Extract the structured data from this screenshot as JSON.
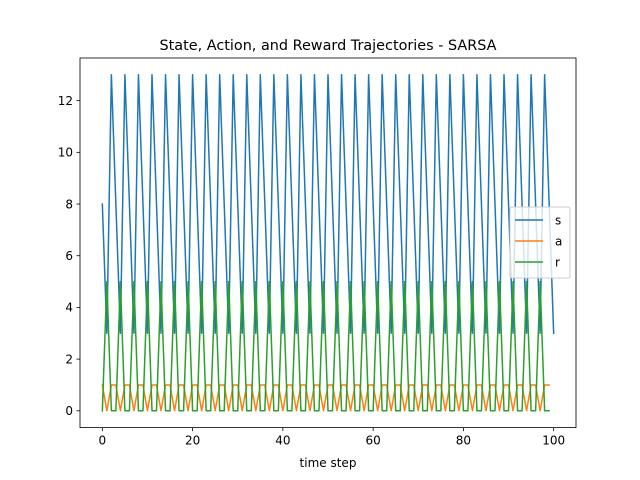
{
  "chart_data": {
    "type": "line",
    "title": "State, Action, and Reward Trajectories - SARSA",
    "xlabel": "time step",
    "ylabel": "",
    "xlim": [
      -4.95,
      104.95
    ],
    "ylim": [
      -0.65,
      13.65
    ],
    "xticks": [
      0,
      20,
      40,
      60,
      80,
      100
    ],
    "yticks": [
      0,
      2,
      4,
      6,
      8,
      10,
      12
    ],
    "grid": false,
    "legend_position": "center-right",
    "series": [
      {
        "name": "s",
        "color": "#1f77b4",
        "x": [
          0,
          1,
          2,
          3,
          4,
          5,
          6,
          7,
          8,
          9,
          10,
          11,
          12,
          13,
          14,
          15,
          16,
          17,
          18,
          19,
          20,
          21,
          22,
          23,
          24,
          25,
          26,
          27,
          28,
          29,
          30,
          31,
          32,
          33,
          34,
          35,
          36,
          37,
          38,
          39,
          40,
          41,
          42,
          43,
          44,
          45,
          46,
          47,
          48,
          49,
          50,
          51,
          52,
          53,
          54,
          55,
          56,
          57,
          58,
          59,
          60,
          61,
          62,
          63,
          64,
          65,
          66,
          67,
          68,
          69,
          70,
          71,
          72,
          73,
          74,
          75,
          76,
          77,
          78,
          79,
          80,
          81,
          82,
          83,
          84,
          85,
          86,
          87,
          88,
          89,
          90,
          91,
          92,
          93,
          94,
          95,
          96,
          97,
          98,
          99,
          100
        ],
        "values": [
          8,
          3,
          13,
          8,
          3,
          13,
          8,
          3,
          13,
          8,
          3,
          13,
          8,
          3,
          13,
          8,
          3,
          13,
          8,
          3,
          13,
          8,
          3,
          13,
          8,
          3,
          13,
          8,
          3,
          13,
          8,
          3,
          13,
          8,
          3,
          13,
          8,
          3,
          13,
          8,
          3,
          13,
          8,
          3,
          13,
          8,
          3,
          13,
          8,
          3,
          13,
          8,
          3,
          13,
          8,
          3,
          13,
          8,
          3,
          13,
          8,
          3,
          13,
          8,
          3,
          13,
          8,
          3,
          13,
          8,
          3,
          13,
          8,
          3,
          13,
          8,
          3,
          13,
          8,
          3,
          13,
          8,
          3,
          13,
          8,
          3,
          13,
          8,
          3,
          13,
          8,
          3,
          13,
          8,
          3,
          13,
          8,
          3,
          13,
          8,
          3
        ]
      },
      {
        "name": "a",
        "color": "#ff7f0e",
        "x": [
          0,
          1,
          2,
          3,
          4,
          5,
          6,
          7,
          8,
          9,
          10,
          11,
          12,
          13,
          14,
          15,
          16,
          17,
          18,
          19,
          20,
          21,
          22,
          23,
          24,
          25,
          26,
          27,
          28,
          29,
          30,
          31,
          32,
          33,
          34,
          35,
          36,
          37,
          38,
          39,
          40,
          41,
          42,
          43,
          44,
          45,
          46,
          47,
          48,
          49,
          50,
          51,
          52,
          53,
          54,
          55,
          56,
          57,
          58,
          59,
          60,
          61,
          62,
          63,
          64,
          65,
          66,
          67,
          68,
          69,
          70,
          71,
          72,
          73,
          74,
          75,
          76,
          77,
          78,
          79,
          80,
          81,
          82,
          83,
          84,
          85,
          86,
          87,
          88,
          89,
          90,
          91,
          92,
          93,
          94,
          95,
          96,
          97,
          98,
          99
        ],
        "values": [
          1,
          0,
          1,
          1,
          0,
          1,
          1,
          0,
          1,
          1,
          0,
          1,
          1,
          0,
          1,
          1,
          0,
          1,
          1,
          0,
          1,
          1,
          0,
          1,
          1,
          0,
          1,
          1,
          0,
          1,
          1,
          0,
          1,
          1,
          0,
          1,
          1,
          0,
          1,
          1,
          0,
          1,
          1,
          0,
          1,
          1,
          0,
          1,
          1,
          0,
          1,
          1,
          0,
          1,
          1,
          0,
          1,
          1,
          0,
          1,
          1,
          0,
          1,
          1,
          0,
          1,
          1,
          0,
          1,
          1,
          0,
          1,
          1,
          0,
          1,
          1,
          0,
          1,
          1,
          0,
          1,
          1,
          0,
          1,
          1,
          0,
          1,
          1,
          0,
          1,
          1,
          0,
          1,
          1,
          0,
          1,
          1,
          0,
          1,
          1
        ]
      },
      {
        "name": "r",
        "color": "#2ca02c",
        "x": [
          0,
          1,
          2,
          3,
          4,
          5,
          6,
          7,
          8,
          9,
          10,
          11,
          12,
          13,
          14,
          15,
          16,
          17,
          18,
          19,
          20,
          21,
          22,
          23,
          24,
          25,
          26,
          27,
          28,
          29,
          30,
          31,
          32,
          33,
          34,
          35,
          36,
          37,
          38,
          39,
          40,
          41,
          42,
          43,
          44,
          45,
          46,
          47,
          48,
          49,
          50,
          51,
          52,
          53,
          54,
          55,
          56,
          57,
          58,
          59,
          60,
          61,
          62,
          63,
          64,
          65,
          66,
          67,
          68,
          69,
          70,
          71,
          72,
          73,
          74,
          75,
          76,
          77,
          78,
          79,
          80,
          81,
          82,
          83,
          84,
          85,
          86,
          87,
          88,
          89,
          90,
          91,
          92,
          93,
          94,
          95,
          96,
          97,
          98,
          99
        ],
        "values": [
          0,
          5,
          0,
          0,
          5,
          0,
          0,
          5,
          0,
          0,
          5,
          0,
          0,
          5,
          0,
          0,
          5,
          0,
          0,
          5,
          0,
          0,
          5,
          0,
          0,
          5,
          0,
          0,
          5,
          0,
          0,
          5,
          0,
          0,
          5,
          0,
          0,
          5,
          0,
          0,
          5,
          0,
          0,
          5,
          0,
          0,
          5,
          0,
          0,
          5,
          0,
          0,
          5,
          0,
          0,
          5,
          0,
          0,
          5,
          0,
          0,
          5,
          0,
          0,
          5,
          0,
          0,
          5,
          0,
          0,
          5,
          0,
          0,
          5,
          0,
          0,
          5,
          0,
          0,
          5,
          0,
          0,
          5,
          0,
          0,
          5,
          0,
          0,
          5,
          0,
          0,
          5,
          0,
          0,
          5,
          0,
          0,
          5,
          0,
          0
        ]
      }
    ]
  }
}
